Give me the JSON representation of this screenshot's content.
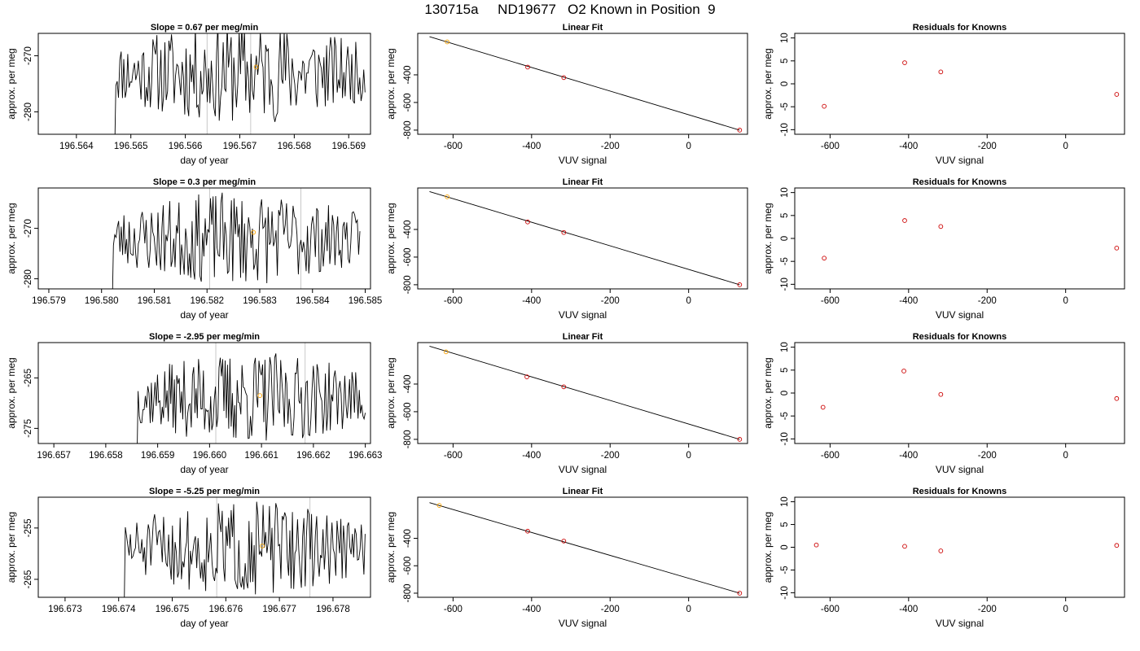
{
  "page": {
    "title": "130715a     ND19677   O2 Known in Position  9"
  },
  "chart_data": [
    {
      "type": "line",
      "title": "Slope =  0.67  per meg/min",
      "xlabel": "day of year",
      "ylabel": "approx. per meg",
      "xlim": [
        196.5633,
        196.5694
      ],
      "ylim": [
        -284,
        -266
      ],
      "xticks": [
        196.564,
        196.565,
        196.566,
        196.567,
        196.568,
        196.569
      ],
      "xtick_labels": [
        "196.564",
        "196.565",
        "196.566",
        "196.567",
        "196.568",
        "196.569"
      ],
      "yticks": [
        -270,
        -280
      ],
      "ytick_labels": [
        "-270",
        "-280"
      ],
      "vlines": [
        196.5664,
        196.5672
      ],
      "marker": {
        "x": 196.5673,
        "y": -272,
        "color": "#FFA500"
      },
      "trace_start": 196.5647,
      "trace_end": 196.5693,
      "trace_center": -273,
      "trace_amp": 8,
      "seed": 11
    },
    {
      "type": "scatter",
      "title": "Linear Fit",
      "xlabel": "VUV signal",
      "ylabel": "approx. per meg",
      "xlim": [
        -690,
        150
      ],
      "ylim": [
        -830,
        -100
      ],
      "xticks": [
        -600,
        -400,
        -200,
        0
      ],
      "xtick_labels": [
        "-600",
        "-400",
        "-200",
        "0"
      ],
      "yticks": [
        -400,
        -600,
        -800
      ],
      "ytick_labels": [
        "-400",
        "-600",
        "-800"
      ],
      "points": [
        {
          "x": -615,
          "y": -162,
          "color": "#FFA500"
        },
        {
          "x": -410,
          "y": -344,
          "color": "#CC0000"
        },
        {
          "x": -318,
          "y": -420,
          "color": "#CC0000"
        },
        {
          "x": 130,
          "y": -800,
          "color": "#CC0000"
        }
      ],
      "fit_line": {
        "x": [
          -660,
          130
        ],
        "y": [
          -124,
          -800
        ]
      }
    },
    {
      "type": "scatter",
      "title": "Residuals for Knowns",
      "xlabel": "VUV signal",
      "ylabel": "approx. per meg",
      "xlim": [
        -690,
        150
      ],
      "ylim": [
        -11,
        11
      ],
      "xticks": [
        -600,
        -400,
        -200,
        0
      ],
      "xtick_labels": [
        "-600",
        "-400",
        "-200",
        "0"
      ],
      "yticks": [
        10,
        5,
        0,
        -5,
        -10
      ],
      "ytick_labels": [
        "10",
        "5",
        "0",
        "-5",
        "-10"
      ],
      "points": [
        {
          "x": -615,
          "y": -4.9,
          "color": "#CC0000"
        },
        {
          "x": -410,
          "y": 4.6,
          "color": "#CC0000"
        },
        {
          "x": -318,
          "y": 2.6,
          "color": "#CC0000"
        },
        {
          "x": 130,
          "y": -2.3,
          "color": "#CC0000"
        }
      ]
    },
    {
      "type": "line",
      "title": "Slope =  0.3  per meg/min",
      "xlabel": "day of year",
      "ylabel": "approx. per meg",
      "xlim": [
        196.5788,
        196.5851
      ],
      "ylim": [
        -282,
        -262
      ],
      "xticks": [
        196.579,
        196.58,
        196.581,
        196.582,
        196.583,
        196.584,
        196.585
      ],
      "xtick_labels": [
        "196.579",
        "196.580",
        "196.581",
        "196.582",
        "196.583",
        "196.584",
        "196.585"
      ],
      "yticks": [
        -270,
        -280
      ],
      "ytick_labels": [
        "-270",
        "-280"
      ],
      "vlines": [
        196.58205,
        196.58378
      ],
      "marker": {
        "x": 196.58288,
        "y": -270.8,
        "color": "#FFA500"
      },
      "trace_start": 196.5802,
      "trace_end": 196.5849,
      "trace_center": -272,
      "trace_amp": 8,
      "seed": 23
    },
    {
      "type": "scatter",
      "title": "Linear Fit",
      "xlabel": "VUV signal",
      "ylabel": "approx. per meg",
      "xlim": [
        -690,
        150
      ],
      "ylim": [
        -830,
        -100
      ],
      "xticks": [
        -600,
        -400,
        -200,
        0
      ],
      "xtick_labels": [
        "-600",
        "-400",
        "-200",
        "0"
      ],
      "yticks": [
        -400,
        -600,
        -800
      ],
      "ytick_labels": [
        "-400",
        "-600",
        "-800"
      ],
      "points": [
        {
          "x": -615,
          "y": -164,
          "color": "#FFA500"
        },
        {
          "x": -410,
          "y": -346,
          "color": "#CC0000"
        },
        {
          "x": -318,
          "y": -422,
          "color": "#CC0000"
        },
        {
          "x": 130,
          "y": -800,
          "color": "#CC0000"
        }
      ],
      "fit_line": {
        "x": [
          -660,
          130
        ],
        "y": [
          -126,
          -800
        ]
      }
    },
    {
      "type": "scatter",
      "title": "Residuals for Knowns",
      "xlabel": "VUV signal",
      "ylabel": "approx. per meg",
      "xlim": [
        -690,
        150
      ],
      "ylim": [
        -11,
        11
      ],
      "xticks": [
        -600,
        -400,
        -200,
        0
      ],
      "xtick_labels": [
        "-600",
        "-400",
        "-200",
        "0"
      ],
      "yticks": [
        10,
        5,
        0,
        -5,
        -10
      ],
      "ytick_labels": [
        "10",
        "5",
        "0",
        "-5",
        "-10"
      ],
      "points": [
        {
          "x": -615,
          "y": -4.3,
          "color": "#CC0000"
        },
        {
          "x": -410,
          "y": 3.9,
          "color": "#CC0000"
        },
        {
          "x": -318,
          "y": 2.6,
          "color": "#CC0000"
        },
        {
          "x": 130,
          "y": -2.1,
          "color": "#CC0000"
        }
      ]
    },
    {
      "type": "line",
      "title": "Slope =  -2.95  per meg/min",
      "xlabel": "day of year",
      "ylabel": "approx. per meg",
      "xlim": [
        196.6567,
        196.6631
      ],
      "ylim": [
        -278,
        -258
      ],
      "xticks": [
        196.657,
        196.658,
        196.659,
        196.66,
        196.661,
        196.662,
        196.663
      ],
      "xtick_labels": [
        "196.657",
        "196.658",
        "196.659",
        "196.660",
        "196.661",
        "196.662",
        "196.663"
      ],
      "yticks": [
        -265,
        -275
      ],
      "ytick_labels": [
        "-265",
        "-275"
      ],
      "vlines": [
        196.66012,
        196.66184
      ],
      "marker": {
        "x": 196.66097,
        "y": -268.5,
        "color": "#FFA500"
      },
      "trace_start": 196.6586,
      "trace_end": 196.663,
      "trace_center": -269,
      "trace_amp": 8,
      "seed": 37
    },
    {
      "type": "scatter",
      "title": "Linear Fit",
      "xlabel": "VUV signal",
      "ylabel": "approx. per meg",
      "xlim": [
        -690,
        150
      ],
      "ylim": [
        -830,
        -100
      ],
      "xticks": [
        -600,
        -400,
        -200,
        0
      ],
      "xtick_labels": [
        "-600",
        "-400",
        "-200",
        "0"
      ],
      "yticks": [
        -400,
        -600,
        -800
      ],
      "ytick_labels": [
        "-400",
        "-600",
        "-800"
      ],
      "points": [
        {
          "x": -618,
          "y": -167,
          "color": "#FFA500"
        },
        {
          "x": -412,
          "y": -348,
          "color": "#CC0000"
        },
        {
          "x": -318,
          "y": -420,
          "color": "#CC0000"
        },
        {
          "x": 130,
          "y": -800,
          "color": "#CC0000"
        }
      ],
      "fit_line": {
        "x": [
          -660,
          130
        ],
        "y": [
          -126,
          -800
        ]
      }
    },
    {
      "type": "scatter",
      "title": "Residuals for Knowns",
      "xlabel": "VUV signal",
      "ylabel": "approx. per meg",
      "xlim": [
        -690,
        150
      ],
      "ylim": [
        -11,
        11
      ],
      "xticks": [
        -600,
        -400,
        -200,
        0
      ],
      "xtick_labels": [
        "-600",
        "-400",
        "-200",
        "0"
      ],
      "yticks": [
        10,
        5,
        0,
        -5,
        -10
      ],
      "ytick_labels": [
        "10",
        "5",
        "0",
        "-5",
        "-10"
      ],
      "points": [
        {
          "x": -618,
          "y": -3.1,
          "color": "#CC0000"
        },
        {
          "x": -412,
          "y": 4.8,
          "color": "#CC0000"
        },
        {
          "x": -318,
          "y": -0.3,
          "color": "#CC0000"
        },
        {
          "x": 130,
          "y": -1.2,
          "color": "#CC0000"
        }
      ]
    },
    {
      "type": "line",
      "title": "Slope =  -5.25  per meg/min",
      "xlabel": "day of year",
      "ylabel": "approx. per meg",
      "xlim": [
        196.6725,
        196.6787
      ],
      "ylim": [
        -268.5,
        -249
      ],
      "xticks": [
        196.673,
        196.674,
        196.675,
        196.676,
        196.677,
        196.678
      ],
      "xtick_labels": [
        "196.673",
        "196.674",
        "196.675",
        "196.676",
        "196.677",
        "196.678"
      ],
      "yticks": [
        -255,
        -265
      ],
      "ytick_labels": [
        "-255",
        "-265"
      ],
      "vlines": [
        196.67583,
        196.67757
      ],
      "marker": {
        "x": 196.67668,
        "y": -258.5,
        "color": "#FFA500"
      },
      "trace_start": 196.6741,
      "trace_end": 196.6786,
      "trace_center": -259,
      "trace_amp": 8,
      "seed": 51
    },
    {
      "type": "scatter",
      "title": "Linear Fit",
      "xlabel": "VUV signal",
      "ylabel": "approx. per meg",
      "xlim": [
        -690,
        150
      ],
      "ylim": [
        -830,
        -100
      ],
      "xticks": [
        -600,
        -400,
        -200,
        0
      ],
      "xtick_labels": [
        "-600",
        "-400",
        "-200",
        "0"
      ],
      "yticks": [
        -400,
        -600,
        -800
      ],
      "ytick_labels": [
        "-400",
        "-600",
        "-800"
      ],
      "points": [
        {
          "x": -635,
          "y": -160,
          "color": "#FFA500"
        },
        {
          "x": -410,
          "y": -348,
          "color": "#CC0000"
        },
        {
          "x": -318,
          "y": -420,
          "color": "#CC0000"
        },
        {
          "x": 130,
          "y": -800,
          "color": "#CC0000"
        }
      ],
      "fit_line": {
        "x": [
          -660,
          130
        ],
        "y": [
          -140,
          -800
        ]
      }
    },
    {
      "type": "scatter",
      "title": "Residuals for Knowns",
      "xlabel": "VUV signal",
      "ylabel": "approx. per meg",
      "xlim": [
        -690,
        150
      ],
      "ylim": [
        -11,
        11
      ],
      "xticks": [
        -600,
        -400,
        -200,
        0
      ],
      "xtick_labels": [
        "-600",
        "-400",
        "-200",
        "0"
      ],
      "yticks": [
        10,
        5,
        0,
        -5,
        -10
      ],
      "ytick_labels": [
        "10",
        "5",
        "0",
        "-5",
        "-10"
      ],
      "points": [
        {
          "x": -635,
          "y": 0.5,
          "color": "#CC0000"
        },
        {
          "x": -410,
          "y": 0.2,
          "color": "#CC0000"
        },
        {
          "x": -318,
          "y": -0.8,
          "color": "#CC0000"
        },
        {
          "x": 130,
          "y": 0.4,
          "color": "#CC0000"
        }
      ]
    }
  ]
}
